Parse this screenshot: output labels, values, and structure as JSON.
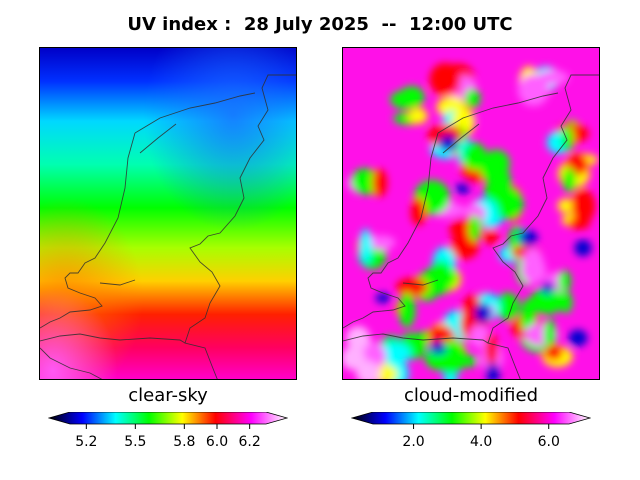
{
  "title": "UV index :  28 July 2025  --  12:00 UTC",
  "panels": [
    {
      "label": "clear-sky"
    },
    {
      "label": "cloud-modified"
    }
  ],
  "colorbars": [
    {
      "min": 5.1,
      "max": 6.3,
      "ticks": [
        "5.2",
        "5.5",
        "5.8",
        "6.0",
        "6.2"
      ],
      "tick_values": [
        5.2,
        5.5,
        5.8,
        6.0,
        6.2
      ]
    },
    {
      "min": 0.8,
      "max": 6.6,
      "ticks": [
        "2.0",
        "4.0",
        "6.0"
      ],
      "tick_values": [
        2.0,
        4.0,
        6.0
      ]
    }
  ],
  "colors": {
    "scale": [
      "#000000",
      "#0000ff",
      "#00ffff",
      "#00ff00",
      "#ffff00",
      "#ff0000",
      "#ff00ff",
      "#ffffff"
    ]
  }
}
